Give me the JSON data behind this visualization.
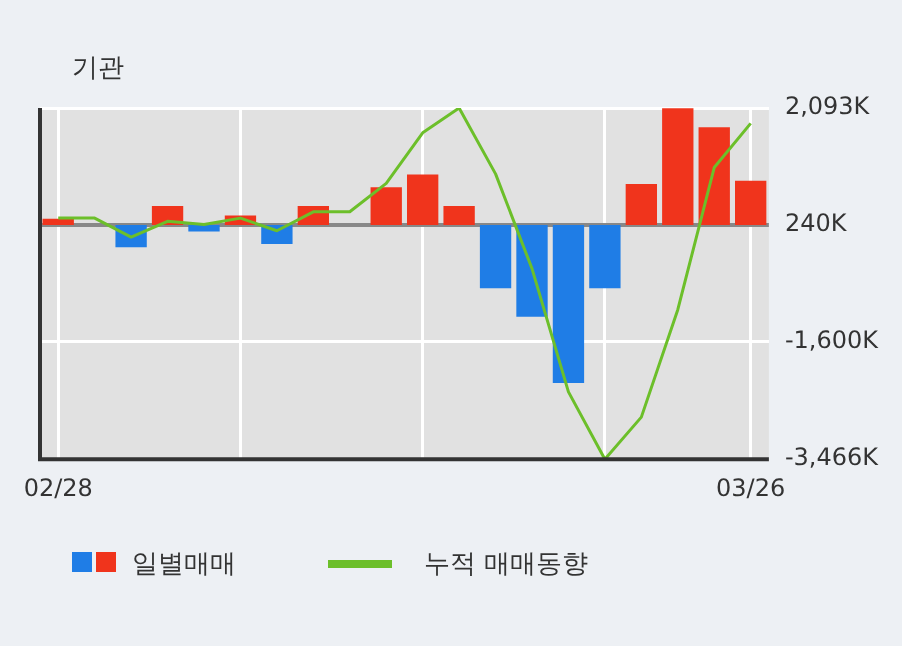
{
  "chart_data": {
    "type": "bar",
    "title": "기관",
    "categories": [
      "02/28",
      null,
      null,
      null,
      null,
      null,
      null,
      null,
      null,
      null,
      null,
      null,
      null,
      null,
      null,
      null,
      null,
      null,
      null,
      "03/26"
    ],
    "series": [
      {
        "name": "일별매매",
        "colors": [
          "#f0341c",
          "#f0341c",
          "#1f7de6",
          "#f0341c",
          "#1f7de6",
          "#f0341c",
          "#1f7de6",
          "#f0341c",
          "#f0341c",
          "#f0341c",
          "#f0341c",
          "#f0341c",
          "#1f7de6",
          "#1f7de6",
          "#1f7de6",
          "#1f7de6",
          "#f0341c",
          "#f0341c",
          "#f0341c",
          "#f0341c"
        ],
        "base": [
          240,
          null,
          240,
          240,
          240,
          240,
          240,
          240,
          null,
          240,
          240,
          240,
          240,
          240,
          240,
          240,
          240,
          240,
          240,
          240
        ],
        "values": [
          100,
          null,
          -350,
          300,
          -100,
          150,
          -300,
          300,
          null,
          600,
          800,
          300,
          -1000,
          -1450,
          -2500,
          -1000,
          650,
          1850,
          1550,
          700
        ]
      },
      {
        "name": "누적 매매동향",
        "type": "line",
        "color": "#6cbf2a",
        "values": [
          350,
          350,
          50,
          300,
          250,
          350,
          150,
          450,
          450,
          900,
          1700,
          2093,
          1050,
          -450,
          -2400,
          -3466,
          -2800,
          -1100,
          1150,
          1850
        ]
      }
    ],
    "ylim": [
      -3466,
      2093
    ],
    "yticks": [
      {
        "value": -3466,
        "label": "-3,466K"
      },
      {
        "value": -1600,
        "label": "-1,600K"
      },
      {
        "value": 240,
        "label": "240K"
      },
      {
        "value": 2093,
        "label": "2,093K"
      }
    ],
    "ref_lines": [
      {
        "axis": "y",
        "value": 240,
        "color": "#888888"
      }
    ],
    "grid": true,
    "legend": "bottom",
    "marker": "none",
    "line_style": "solid"
  }
}
